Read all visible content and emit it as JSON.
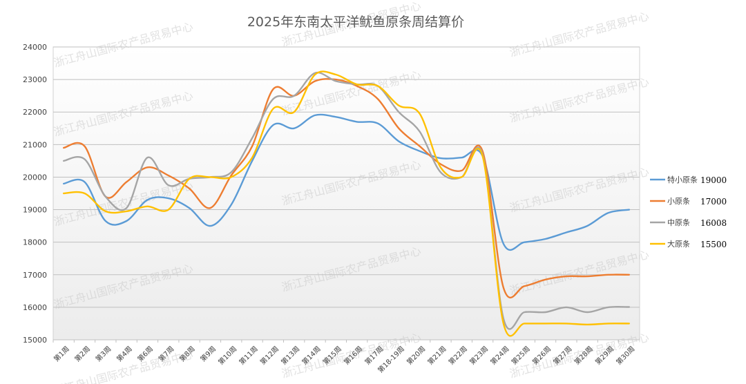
{
  "chart_data": {
    "type": "line",
    "title": "2025年东南太平洋鱿鱼原条周结算价",
    "categories": [
      "第1周",
      "第2周",
      "第3周",
      "第4周",
      "第6周",
      "第7周",
      "第8周",
      "第9周",
      "第10周",
      "第11周",
      "第12周",
      "第13周",
      "第14周",
      "第15周",
      "第16周",
      "第17周",
      "第18-19周",
      "第20周",
      "第21周",
      "第22周",
      "第23周",
      "第24周",
      "第25周",
      "第26周",
      "第27周",
      "第28周",
      "第29周",
      "第30周"
    ],
    "ylim": [
      15000,
      24000
    ],
    "yticks": [
      15000,
      16000,
      17000,
      18000,
      19000,
      20000,
      21000,
      22000,
      23000,
      24000
    ],
    "grid": true,
    "legend_position": "right",
    "series": [
      {
        "name": "特小原条",
        "color": "#5b9bd5",
        "last_value": "19000",
        "values": [
          19800,
          19850,
          18650,
          18650,
          19300,
          19350,
          19050,
          18500,
          19150,
          20500,
          21600,
          21500,
          21900,
          21850,
          21700,
          21650,
          21100,
          20800,
          20580,
          20600,
          20650,
          17950,
          18000,
          18100,
          18300,
          18500,
          18900,
          19000
        ]
      },
      {
        "name": "小原条",
        "color": "#ed7d31",
        "last_value": "17000",
        "values": [
          20900,
          20950,
          19400,
          19850,
          20300,
          20050,
          19650,
          19050,
          20050,
          20950,
          22700,
          22500,
          22950,
          23000,
          22800,
          22400,
          21500,
          20950,
          20400,
          20200,
          20800,
          16600,
          16650,
          16850,
          16950,
          16950,
          17000,
          17000
        ]
      },
      {
        "name": "中原条",
        "color": "#a5a5a5",
        "last_value": "16008",
        "values": [
          20500,
          20550,
          19400,
          19050,
          20600,
          19750,
          19950,
          20000,
          20150,
          21200,
          22400,
          22500,
          23200,
          22950,
          22850,
          22800,
          22000,
          21400,
          20150,
          20000,
          20700,
          15650,
          15850,
          15850,
          16000,
          15850,
          16000,
          16008
        ]
      },
      {
        "name": "大原条",
        "color": "#ffc000",
        "last_value": "15500",
        "values": [
          19500,
          19500,
          18950,
          18950,
          19100,
          19000,
          19950,
          20000,
          20000,
          20600,
          22100,
          22000,
          23150,
          23150,
          22850,
          22800,
          22200,
          21950,
          20300,
          20000,
          20650,
          15500,
          15500,
          15500,
          15500,
          15470,
          15500,
          15500
        ]
      }
    ]
  },
  "watermark": "浙江舟山国际农产品贸易中心"
}
